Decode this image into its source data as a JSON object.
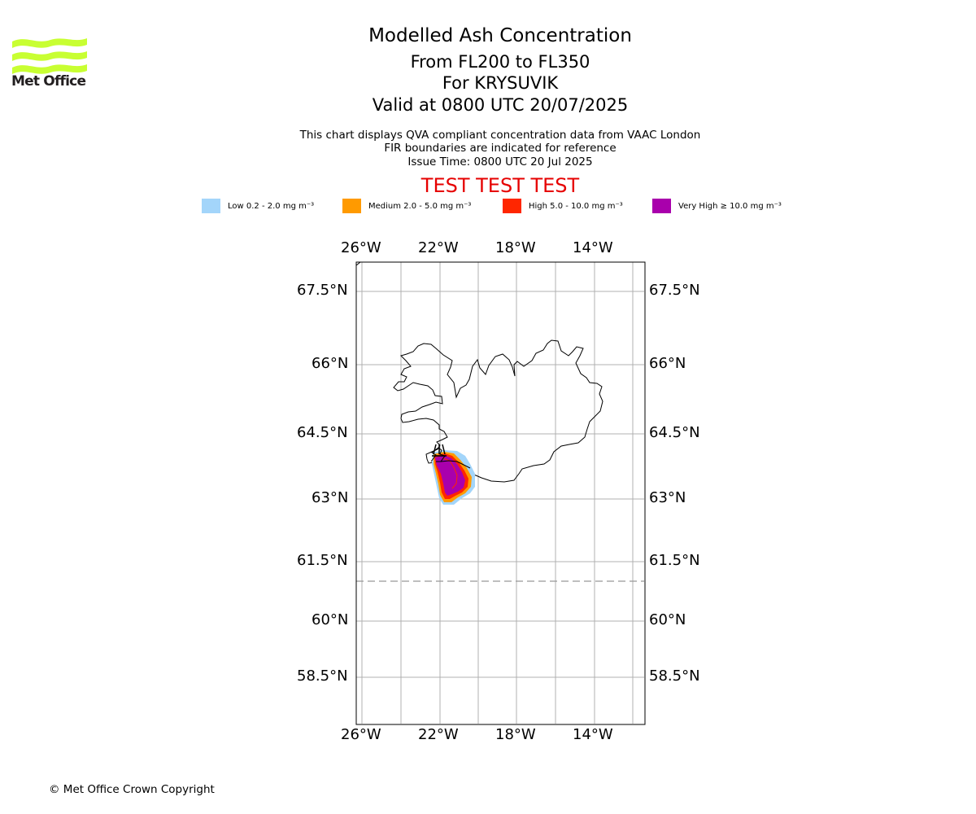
{
  "branding": {
    "logo_text": "Met Office",
    "logo_color": "#c8ff32"
  },
  "header": {
    "title": "Modelled Ash Concentration",
    "levels": "From FL200 to FL350",
    "volcano": "For KRYSUVIK",
    "valid": "Valid at 0800 UTC 20/07/2025"
  },
  "info": {
    "line1": "This chart displays QVA compliant concentration data from VAAC London",
    "line2": "FIR boundaries are indicated for reference",
    "line3": "Issue Time: 0800 UTC 20 Jul 2025"
  },
  "banner": {
    "text": "TEST TEST TEST",
    "color": "#e60000"
  },
  "legend": [
    {
      "label": "Low 0.2 - 2.0 mg m⁻³",
      "color": "#a3d5fa"
    },
    {
      "label": "Medium 2.0 - 5.0 mg m⁻³",
      "color": "#ff9a00"
    },
    {
      "label": "High 5.0 - 10.0 mg m⁻³",
      "color": "#ff2600"
    },
    {
      "label": "Very High  ≥  10.0 mg m⁻³",
      "color": "#a900ac"
    }
  ],
  "map": {
    "lon_ticks": [
      "26°W",
      "22°W",
      "18°W",
      "14°W"
    ],
    "lat_ticks": [
      "67.5°N",
      "66°N",
      "64.5°N",
      "63°N",
      "61.5°N",
      "60°N",
      "58.5°N"
    ]
  },
  "footer": {
    "copyright": "© Met Office Crown Copyright"
  }
}
